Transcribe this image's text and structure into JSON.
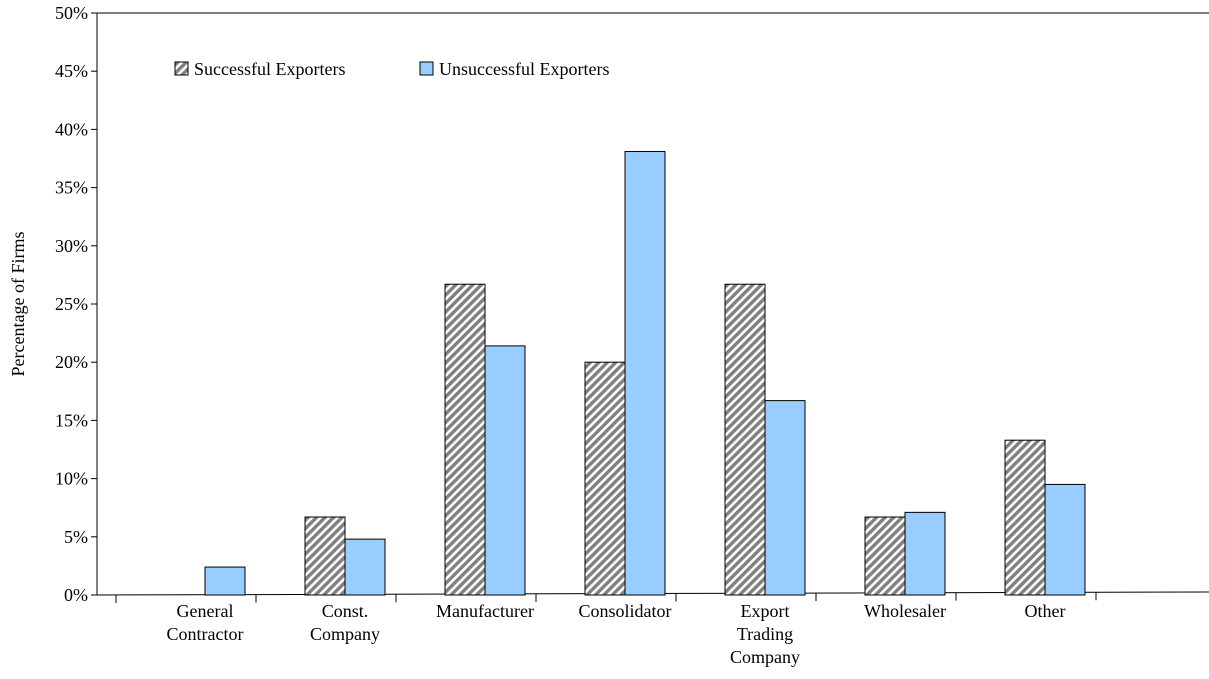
{
  "chart_data": {
    "type": "bar",
    "title": "",
    "xlabel": "",
    "ylabel": "Percentage of Firms",
    "ylim": [
      0,
      50
    ],
    "yticks": [
      0,
      5,
      10,
      15,
      20,
      25,
      30,
      35,
      40,
      45,
      50
    ],
    "ytick_labels": [
      "0%",
      "5%",
      "10%",
      "15%",
      "20%",
      "25%",
      "30%",
      "35%",
      "40%",
      "45%",
      "50%"
    ],
    "categories": [
      [
        "General",
        "Contractor"
      ],
      [
        "Const.",
        "Company"
      ],
      [
        "Manufacturer"
      ],
      [
        "Consolidator"
      ],
      [
        "Export",
        "Trading",
        "Company"
      ],
      [
        "Wholesaler"
      ],
      [
        "Other"
      ]
    ],
    "series": [
      {
        "name": "Successful Exporters",
        "values": [
          0,
          6.7,
          26.7,
          20.0,
          26.7,
          6.7,
          13.3
        ],
        "pattern": "hatch"
      },
      {
        "name": "Unsuccessful Exporters",
        "values": [
          2.4,
          4.8,
          21.4,
          38.1,
          16.7,
          7.1,
          9.5
        ],
        "color": "#99ccff"
      }
    ],
    "legend": "top-left",
    "grid": false
  }
}
